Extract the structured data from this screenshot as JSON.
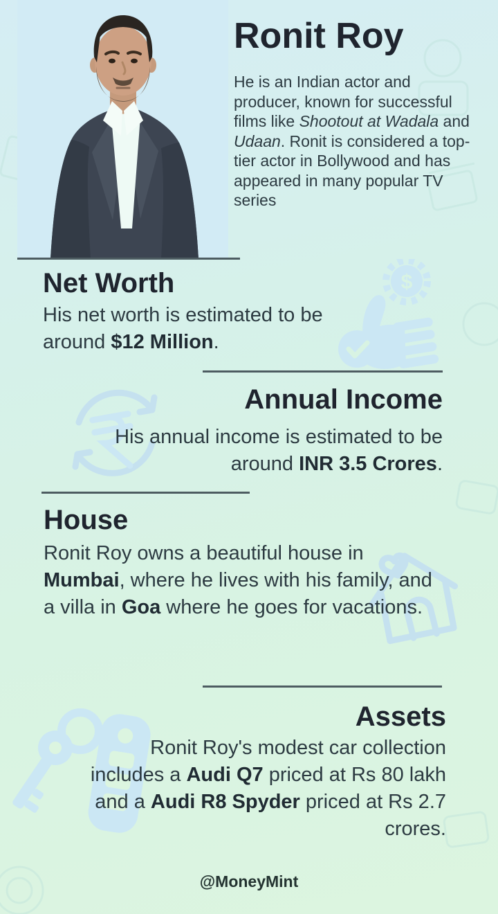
{
  "theme": {
    "bg_top": "#d5edf4",
    "bg_mid": "#d6f1ea",
    "bg_low": "#d8f3e3",
    "bg_bottom": "#dcf5e0",
    "heading_color": "#1f242e",
    "body_color": "#2c3a41",
    "footer_color": "#233230",
    "divider_color": "#4d5c61",
    "photo_bg": "#d2ebf5",
    "watermark_blue": "#cbe7f4",
    "watermark_stroke": "#c5e1ef",
    "pattern_stroke": "#bfe3dc"
  },
  "header": {
    "title": "Ronit Roy",
    "intro_segments": [
      {
        "t": "He is an Indian actor and producer, known for successful films like "
      },
      {
        "t": "Shootout at Wadala",
        "i": true
      },
      {
        "t": " and "
      },
      {
        "t": "Udaan",
        "i": true
      },
      {
        "t": ". Ronit is considered a top-tier actor in Bollywood and has appeared in many popular TV series"
      }
    ]
  },
  "sections": [
    {
      "id": "net-worth",
      "heading": "Net Worth",
      "align": "left",
      "icon": "thumbs-up-dollar-gear-icon",
      "body_segments": [
        {
          "t": "His net worth is estimated to be around "
        },
        {
          "t": "$12 Million",
          "b": true
        },
        {
          "t": "."
        }
      ]
    },
    {
      "id": "annual-income",
      "heading": "Annual Income",
      "align": "right",
      "icon": "rupee-refresh-icon",
      "body_segments": [
        {
          "t": "His annual income is estimated to be around "
        },
        {
          "t": "INR 3.5 Crores",
          "b": true
        },
        {
          "t": "."
        }
      ]
    },
    {
      "id": "house",
      "heading": "House",
      "align": "left",
      "icon": "house-outline-icon",
      "body_segments": [
        {
          "t": "Ronit Roy owns a beautiful house in "
        },
        {
          "t": "Mumbai",
          "b": true
        },
        {
          "t": ", where he lives with his family, and a villa in "
        },
        {
          "t": "Goa",
          "b": true
        },
        {
          "t": " where he goes for vacations."
        }
      ]
    },
    {
      "id": "assets",
      "heading": "Assets",
      "align": "right",
      "icon": "car-keys-icon",
      "body_segments": [
        {
          "t": "Ronit Roy's modest car collection includes a "
        },
        {
          "t": "Audi Q7",
          "b": true
        },
        {
          "t": " priced at Rs 80 lakh and a "
        },
        {
          "t": "Audi R8 Spyder",
          "b": true
        },
        {
          "t": " priced at Rs 2.7 crores."
        }
      ]
    }
  ],
  "footer": {
    "handle": "@MoneyMint"
  }
}
